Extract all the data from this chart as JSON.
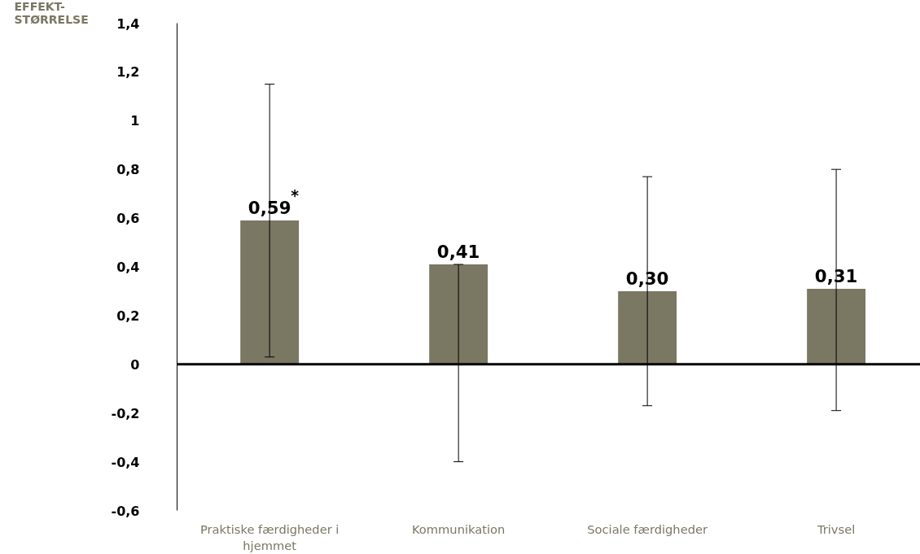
{
  "chart_data": {
    "type": "bar",
    "ylabel": "EFFEKT-\nSTØRRELSE",
    "categories": [
      "Praktiske færdigheder i hjemmet",
      "Kommunikation",
      "Sociale færdigheder",
      "Trivsel"
    ],
    "values": [
      0.59,
      0.41,
      0.3,
      0.31
    ],
    "color": "#7a7763",
    "errors": [
      [
        0.03,
        1.15
      ],
      [
        -0.4,
        0.41
      ],
      [
        -0.17,
        0.77
      ],
      [
        -0.19,
        0.8
      ]
    ],
    "value_labels": [
      "0,59$^{*}$",
      "0,41",
      "0,30",
      "0,31"
    ],
    "ylim": [
      -0.6,
      1.4
    ],
    "yticks": [
      {
        "value": -0.6,
        "label": "-0,6"
      },
      {
        "value": -0.4,
        "label": "-0,4"
      },
      {
        "value": -0.2,
        "label": "-0,2"
      },
      0,
      {
        "value": 0.2,
        "label": "0,2"
      },
      {
        "value": 0.4,
        "label": "0,4"
      },
      {
        "value": 0.6,
        "label": "0,6"
      },
      {
        "value": 0.8,
        "label": "0,8"
      },
      1,
      {
        "value": 1.2,
        "label": "1,2"
      },
      {
        "value": 1.4,
        "label": "1,4"
      }
    ],
    "ref_lines": [
      {
        "axis": "y",
        "value": 0,
        "color": "#000000"
      }
    ],
    "grid": false
  }
}
